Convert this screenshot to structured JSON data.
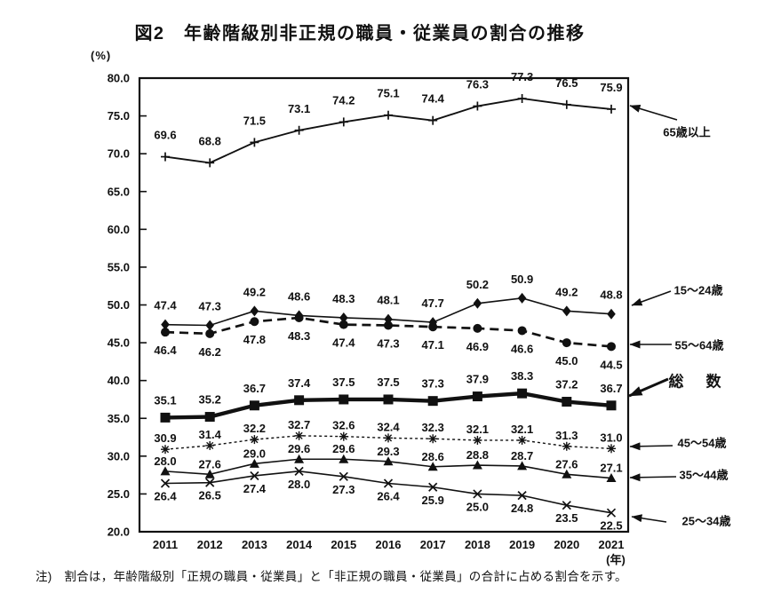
{
  "page": {
    "title": "図2　年齢階級別非正規の職員・従業員の割合の推移",
    "note": "注)　割合は，年齢階級別「正規の職員・従業員」と「非正規の職員・従業員」の合計に占める割合を示す。"
  },
  "chart_data": {
    "type": "line",
    "title": "図2　年齢階級別非正規の職員・従業員の割合の推移",
    "x": [
      2011,
      2012,
      2013,
      2014,
      2015,
      2016,
      2017,
      2018,
      2019,
      2020,
      2021
    ],
    "x_unit_label": "(年)",
    "y_unit_label": "(%)",
    "ylim": [
      20.0,
      80.0
    ],
    "y_tick_step": 5.0,
    "grid": false,
    "legend_position": "right",
    "series": [
      {
        "id": "age-65-over",
        "name": "65歳以上",
        "marker": "plus",
        "line": "solid",
        "values": [
          69.6,
          68.8,
          71.5,
          73.1,
          74.2,
          75.1,
          74.4,
          76.3,
          77.3,
          76.5,
          75.9
        ]
      },
      {
        "id": "age-15-24",
        "name": "15～24歳",
        "marker": "diamond",
        "line": "solid",
        "values": [
          47.4,
          47.3,
          49.2,
          48.6,
          48.3,
          48.1,
          47.7,
          50.2,
          50.9,
          49.2,
          48.8
        ]
      },
      {
        "id": "age-55-64",
        "name": "55～64歳",
        "marker": "circle",
        "line": "dashed",
        "values": [
          46.4,
          46.2,
          47.8,
          48.3,
          47.4,
          47.3,
          47.1,
          46.9,
          46.6,
          45.0,
          44.5
        ]
      },
      {
        "id": "total",
        "name": "総　数",
        "marker": "square",
        "line": "solid-thick",
        "values": [
          35.1,
          35.2,
          36.7,
          37.4,
          37.5,
          37.5,
          37.3,
          37.9,
          38.3,
          37.2,
          36.7
        ]
      },
      {
        "id": "age-45-54",
        "name": "45～54歳",
        "marker": "asterisk",
        "line": "dotted",
        "values": [
          30.9,
          31.4,
          32.2,
          32.7,
          32.6,
          32.4,
          32.3,
          32.1,
          32.1,
          31.3,
          31.0
        ]
      },
      {
        "id": "age-35-44",
        "name": "35～44歳",
        "marker": "triangle",
        "line": "solid",
        "values": [
          28.0,
          27.6,
          29.0,
          29.6,
          29.6,
          29.3,
          28.6,
          28.8,
          28.7,
          27.6,
          27.1
        ]
      },
      {
        "id": "age-25-34",
        "name": "25～34歳",
        "marker": "xcross",
        "line": "solid",
        "values": [
          26.4,
          26.5,
          27.4,
          28.0,
          27.3,
          26.4,
          25.9,
          25.0,
          24.8,
          23.5,
          22.5
        ]
      }
    ],
    "colors": {
      "line": "#111111",
      "background": "#ffffff"
    }
  }
}
